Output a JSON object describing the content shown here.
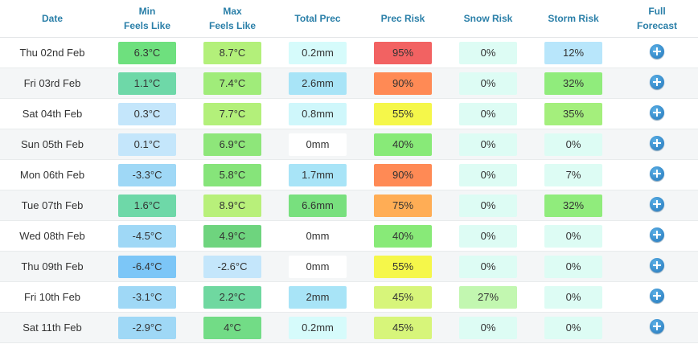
{
  "table": {
    "headers": [
      [
        "Date"
      ],
      [
        "Min",
        "Feels Like"
      ],
      [
        "Max",
        "Feels Like"
      ],
      [
        "Total Prec"
      ],
      [
        "Prec Risk"
      ],
      [
        "Snow Risk"
      ],
      [
        "Storm Risk"
      ],
      [
        "Full",
        "Forecast"
      ]
    ],
    "rows": [
      {
        "date": "Thu 02nd Feb",
        "cells": [
          "6.3°C",
          "8.7°C",
          "0.2mm",
          "95%",
          "0%",
          "12%"
        ],
        "colors": [
          "#6ee07e",
          "#b3f07a",
          "#d6fbfb",
          "#f26262",
          "#ddfcf4",
          "#b8e6fb"
        ]
      },
      {
        "date": "Fri 03rd Feb",
        "cells": [
          "1.1°C",
          "7.4°C",
          "2.6mm",
          "90%",
          "0%",
          "32%"
        ],
        "colors": [
          "#6ed8a8",
          "#a0ec7a",
          "#a8e4f7",
          "#ff8a55",
          "#ddfcf4",
          "#90ec7c"
        ]
      },
      {
        "date": "Sat 04th Feb",
        "cells": [
          "0.3°C",
          "7.7°C",
          "0.8mm",
          "55%",
          "0%",
          "35%"
        ],
        "colors": [
          "#c4e6fb",
          "#b3f07a",
          "#cff7fb",
          "#f5f74a",
          "#ddfcf4",
          "#a4ef7c"
        ]
      },
      {
        "date": "Sun 05th Feb",
        "cells": [
          "0.1°C",
          "6.9°C",
          "0mm",
          "40%",
          "0%",
          "0%"
        ],
        "colors": [
          "#c4e6fb",
          "#8ee67a",
          "#ffffff",
          "#88ea78",
          "#ddfcf4",
          "#ddfcf4"
        ]
      },
      {
        "date": "Mon 06th Feb",
        "cells": [
          "-3.3°C",
          "5.8°C",
          "1.7mm",
          "90%",
          "0%",
          "7%"
        ],
        "colors": [
          "#9fd8f6",
          "#86e47a",
          "#a8e4f7",
          "#ff8a55",
          "#ddfcf4",
          "#ddfcf4"
        ]
      },
      {
        "date": "Tue 07th Feb",
        "cells": [
          "1.6°C",
          "8.9°C",
          "6.6mm",
          "75%",
          "0%",
          "32%"
        ],
        "colors": [
          "#6ed8a8",
          "#b8f07a",
          "#78e07e",
          "#ffad55",
          "#ddfcf4",
          "#90ec7c"
        ]
      },
      {
        "date": "Wed 08th Feb",
        "cells": [
          "-4.5°C",
          "4.9°C",
          "0mm",
          "40%",
          "0%",
          "0%"
        ],
        "colors": [
          "#9fd8f6",
          "#6ed47e",
          "#ffffff",
          "#88ea78",
          "#ddfcf4",
          "#ddfcf4"
        ]
      },
      {
        "date": "Thu 09th Feb",
        "cells": [
          "-6.4°C",
          "-2.6°C",
          "0mm",
          "55%",
          "0%",
          "0%"
        ],
        "colors": [
          "#7cc6f7",
          "#c4e6fb",
          "#ffffff",
          "#f5f74a",
          "#ddfcf4",
          "#ddfcf4"
        ]
      },
      {
        "date": "Fri 10th Feb",
        "cells": [
          "-3.1°C",
          "2.2°C",
          "2mm",
          "45%",
          "27%",
          "0%"
        ],
        "colors": [
          "#9fd8f6",
          "#6fd8a0",
          "#a8e4f7",
          "#d7f57a",
          "#c2f7b0",
          "#ddfcf4"
        ]
      },
      {
        "date": "Sat 11th Feb",
        "cells": [
          "-2.9°C",
          "4°C",
          "0.2mm",
          "45%",
          "0%",
          "0%"
        ],
        "colors": [
          "#9fd8f6",
          "#72dc86",
          "#d6fbfb",
          "#d7f57a",
          "#ddfcf4",
          "#ddfcf4"
        ]
      }
    ]
  }
}
